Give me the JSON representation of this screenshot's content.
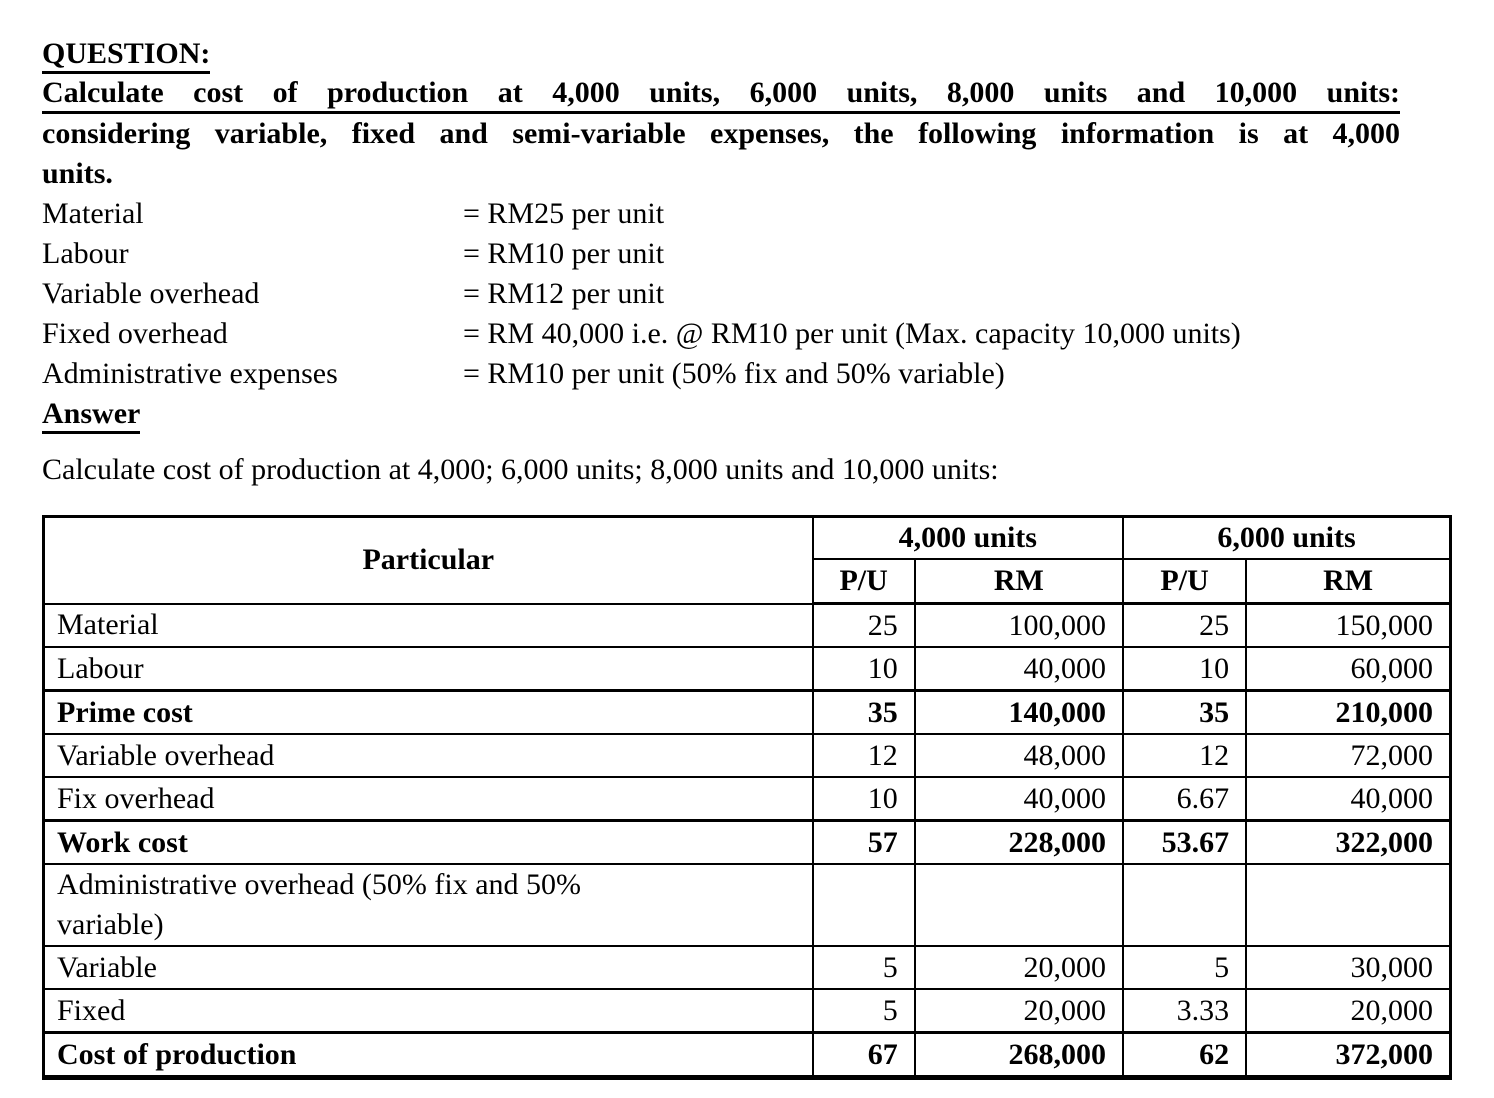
{
  "page": {
    "background_color": "#ffffff",
    "text_color": "#000000"
  },
  "question": {
    "heading": "QUESTION:",
    "statement_line1": "Calculate cost of production at 4,000 units, 6,000 units, 8,000 units and 10,000 units:",
    "statement_line2": "considering variable, fixed and semi-variable expenses, the following information is at 4,000",
    "statement_line3": "units.",
    "info": [
      {
        "label": "Material",
        "value": "= RM25 per unit"
      },
      {
        "label": "Labour",
        "value": "= RM10 per unit"
      },
      {
        "label": "Variable overhead",
        "value": "= RM12 per unit"
      },
      {
        "label": "Fixed overhead",
        "value": "= RM 40,000 i.e. @ RM10 per unit (Max. capacity 10,000 units)"
      },
      {
        "label": "Administrative expenses",
        "value": "= RM10 per unit (50% fix and 50% variable)"
      }
    ]
  },
  "answer": {
    "heading": "Answer",
    "intro": "Calculate cost of production at 4,000; 6,000 units; 8,000 units and 10,000 units:"
  },
  "table": {
    "particular_header": "Particular",
    "groups": [
      {
        "label": "4,000 units",
        "sub": [
          "P/U",
          "RM"
        ]
      },
      {
        "label": "6,000 units",
        "sub": [
          "P/U",
          "RM"
        ]
      }
    ],
    "rows": [
      {
        "label_lines": [
          "Material"
        ],
        "bold": false,
        "cells": [
          "25",
          "100,000",
          "25",
          "150,000"
        ]
      },
      {
        "label_lines": [
          "Labour"
        ],
        "bold": false,
        "cells": [
          "10",
          "40,000",
          "10",
          "60,000"
        ]
      },
      {
        "label_lines": [
          "Prime cost"
        ],
        "bold": true,
        "cells": [
          "35",
          "140,000",
          "35",
          "210,000"
        ]
      },
      {
        "label_lines": [
          "Variable overhead"
        ],
        "bold": false,
        "cells": [
          "12",
          "48,000",
          "12",
          "72,000"
        ]
      },
      {
        "label_lines": [
          "Fix overhead"
        ],
        "bold": false,
        "cells": [
          "10",
          "40,000",
          "6.67",
          "40,000"
        ]
      },
      {
        "label_lines": [
          "Work cost"
        ],
        "bold": true,
        "cells": [
          "57",
          "228,000",
          "53.67",
          "322,000"
        ]
      },
      {
        "label_lines": [
          "Administrative overhead (50% fix and 50%",
          "variable)"
        ],
        "bold": false,
        "cells": [
          "",
          "",
          "",
          ""
        ]
      },
      {
        "label_lines": [
          "Variable"
        ],
        "bold": false,
        "cells": [
          "5",
          "20,000",
          "5",
          "30,000"
        ]
      },
      {
        "label_lines": [
          "Fixed"
        ],
        "bold": false,
        "cells": [
          "5",
          "20,000",
          "3.33",
          "20,000"
        ]
      },
      {
        "label_lines": [
          "Cost of production"
        ],
        "bold": true,
        "cells": [
          "67",
          "268,000",
          "62",
          "372,000"
        ]
      }
    ]
  }
}
